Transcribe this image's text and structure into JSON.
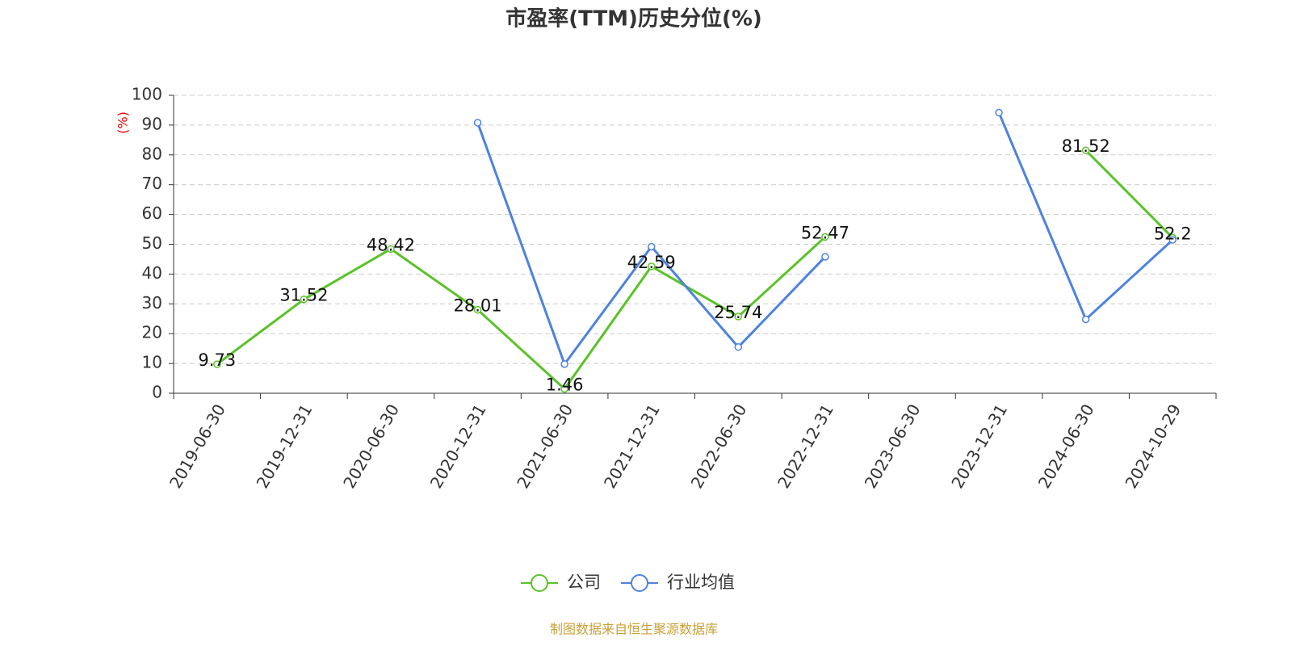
{
  "chart_data": {
    "type": "line",
    "title": "市盈率(TTM)历史分位(%)",
    "y_label": "(%)",
    "categories": [
      "2019-06-30",
      "2019-12-31",
      "2020-06-30",
      "2020-12-31",
      "2021-06-30",
      "2021-12-31",
      "2022-06-30",
      "2022-12-31",
      "2023-06-30",
      "2023-12-31",
      "2024-06-30",
      "2024-10-29"
    ],
    "series": [
      {
        "name": "公司",
        "color": "#5ac229",
        "values": [
          9.73,
          31.52,
          48.42,
          28.01,
          1.46,
          42.59,
          25.74,
          52.47,
          null,
          null,
          81.52,
          52.2
        ],
        "show_labels": true
      },
      {
        "name": "行业均值",
        "color": "#4e82de",
        "values": [
          null,
          null,
          null,
          90.8,
          9.8,
          49.2,
          15.5,
          45.8,
          null,
          94.2,
          24.8,
          51.5
        ],
        "show_labels": false
      }
    ],
    "ylim": [
      0,
      100
    ],
    "yticks": [
      0,
      10,
      20,
      30,
      40,
      50,
      60,
      70,
      80,
      90,
      100
    ],
    "grid": true,
    "legend": "bottom",
    "source": "制图数据来自恒生聚源数据库"
  }
}
